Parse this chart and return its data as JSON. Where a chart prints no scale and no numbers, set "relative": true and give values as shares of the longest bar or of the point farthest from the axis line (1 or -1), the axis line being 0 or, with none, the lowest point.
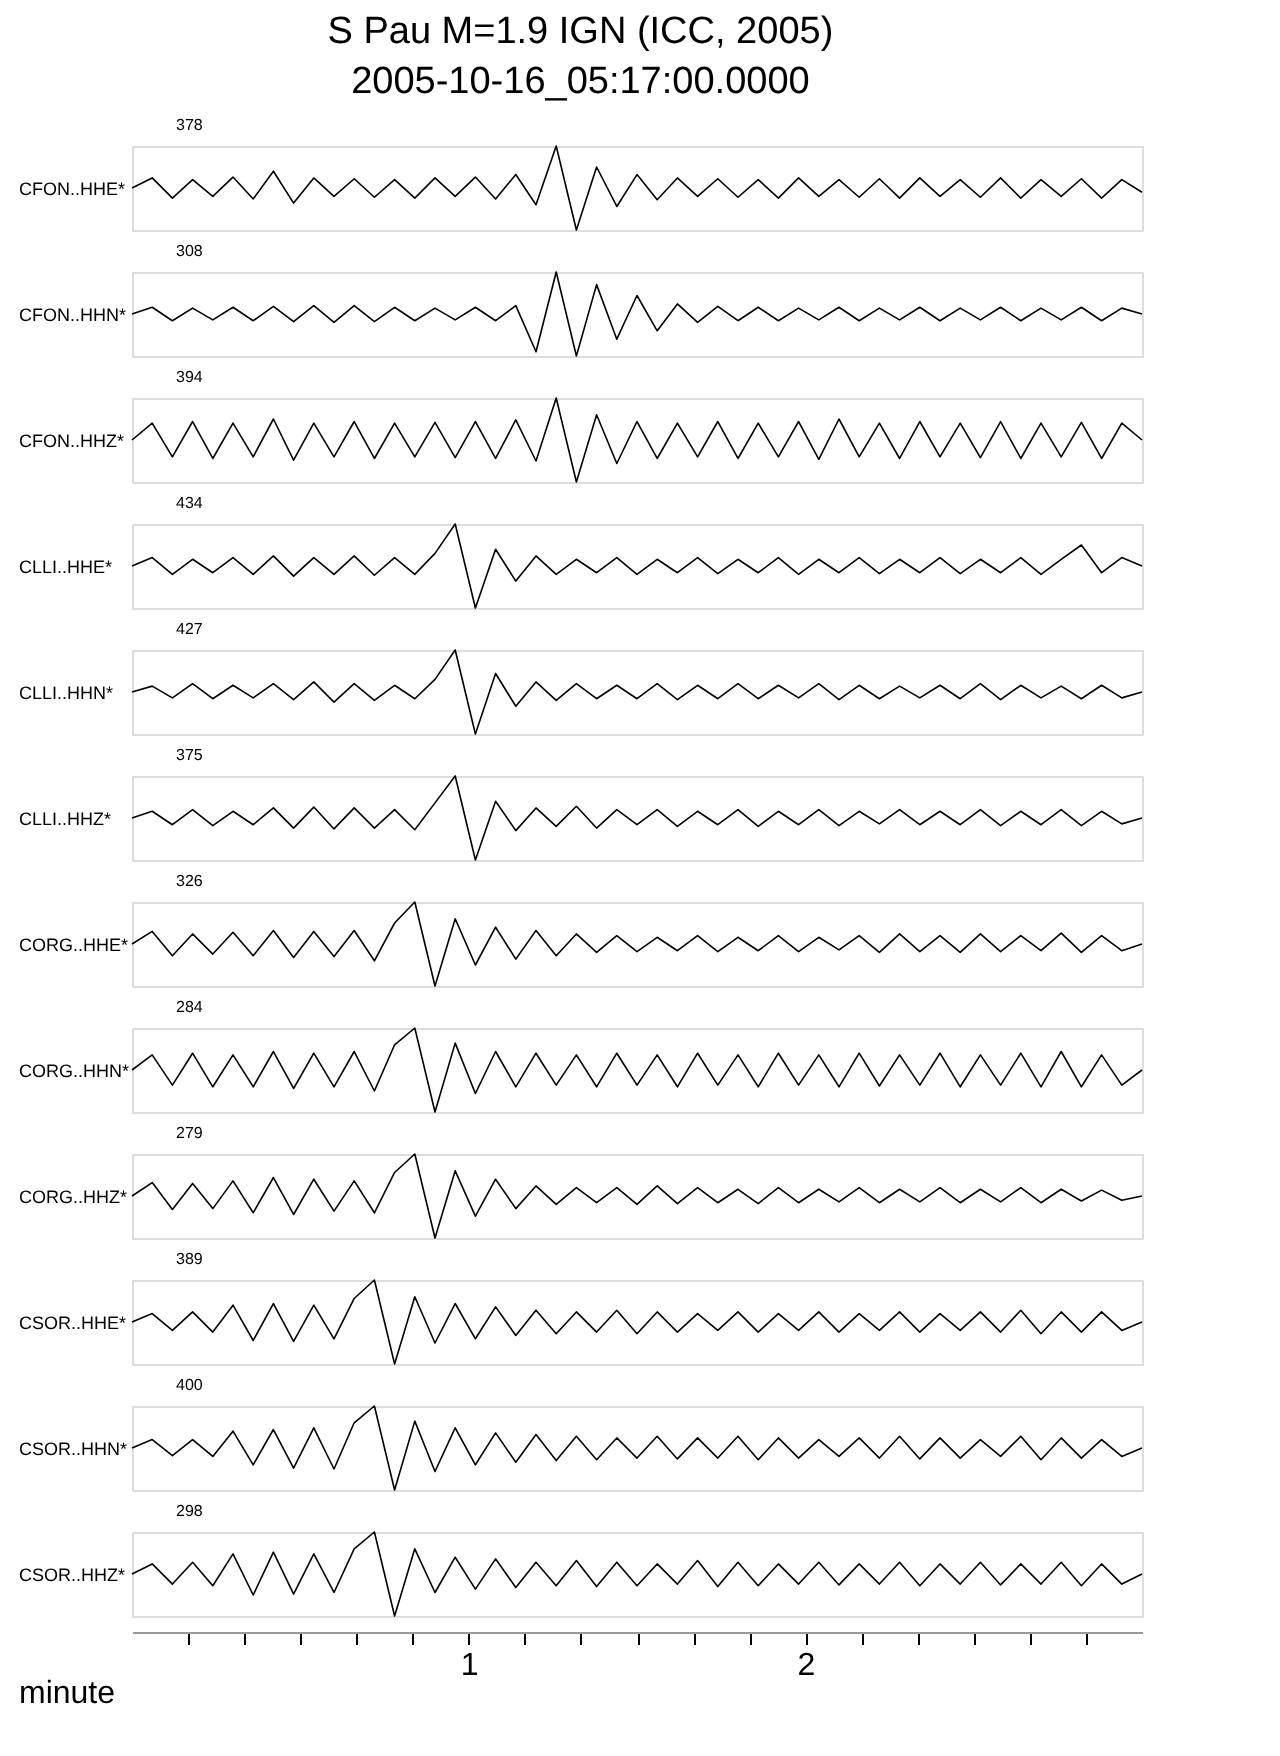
{
  "chart_data": [
    {
      "type": "line",
      "title": "S Pau M=1.9 IGN (ICC, 2005)",
      "subtitle": "2005-10-16_05:17:00.0000",
      "ylabel": "CFON..HHE*",
      "annotations": [
        "378"
      ],
      "relative": true,
      "tick_labels": false,
      "categories": [
        null,
        null,
        null,
        null,
        null,
        null,
        null,
        null,
        null,
        null,
        null,
        null,
        null,
        null,
        null,
        null,
        null,
        null,
        null,
        null,
        null,
        null,
        null,
        null,
        null,
        null,
        null,
        null,
        null,
        null,
        null,
        null,
        null,
        null,
        null,
        null,
        null,
        null,
        null,
        null,
        null,
        null,
        null,
        null,
        null,
        null,
        null,
        null,
        null,
        null,
        null
      ],
      "series": [
        {
          "color": "#000000",
          "values": [
            0.5,
            0.62,
            0.38,
            0.6,
            0.4,
            0.63,
            0.37,
            0.7,
            0.32,
            0.62,
            0.4,
            0.61,
            0.39,
            0.6,
            0.38,
            0.62,
            0.4,
            0.63,
            0.37,
            0.66,
            0.3,
            1,
            0,
            0.75,
            0.28,
            0.66,
            0.36,
            0.62,
            0.4,
            0.61,
            0.39,
            0.6,
            0.38,
            0.62,
            0.4,
            0.6,
            0.39,
            0.61,
            0.38,
            0.62,
            0.4,
            0.6,
            0.39,
            0.62,
            0.38,
            0.6,
            0.4,
            0.61,
            0.38,
            0.6,
            0.45
          ]
        }
      ]
    },
    {
      "type": "line",
      "ylabel": "CFON..HHN*",
      "annotations": [
        "308"
      ],
      "relative": true,
      "tick_labels": false,
      "categories": [
        null,
        null,
        null,
        null,
        null,
        null,
        null,
        null,
        null,
        null,
        null,
        null,
        null,
        null,
        null,
        null,
        null,
        null,
        null,
        null,
        null,
        null,
        null,
        null,
        null,
        null,
        null,
        null,
        null,
        null,
        null,
        null,
        null,
        null,
        null,
        null,
        null,
        null,
        null,
        null,
        null,
        null,
        null,
        null,
        null,
        null,
        null,
        null,
        null,
        null,
        null
      ],
      "series": [
        {
          "color": "#000000",
          "values": [
            0.5,
            0.58,
            0.42,
            0.57,
            0.43,
            0.58,
            0.42,
            0.59,
            0.41,
            0.6,
            0.4,
            0.6,
            0.41,
            0.58,
            0.42,
            0.57,
            0.43,
            0.58,
            0.42,
            0.6,
            0.05,
            1,
            0,
            0.85,
            0.2,
            0.72,
            0.3,
            0.62,
            0.4,
            0.59,
            0.42,
            0.58,
            0.42,
            0.57,
            0.43,
            0.58,
            0.42,
            0.57,
            0.43,
            0.58,
            0.42,
            0.57,
            0.43,
            0.58,
            0.42,
            0.57,
            0.43,
            0.58,
            0.42,
            0.57,
            0.5
          ]
        }
      ]
    },
    {
      "type": "line",
      "ylabel": "CFON..HHZ*",
      "annotations": [
        "394"
      ],
      "relative": true,
      "tick_labels": false,
      "categories": [
        null,
        null,
        null,
        null,
        null,
        null,
        null,
        null,
        null,
        null,
        null,
        null,
        null,
        null,
        null,
        null,
        null,
        null,
        null,
        null,
        null,
        null,
        null,
        null,
        null,
        null,
        null,
        null,
        null,
        null,
        null,
        null,
        null,
        null,
        null,
        null,
        null,
        null,
        null,
        null,
        null,
        null,
        null,
        null,
        null,
        null,
        null,
        null,
        null,
        null,
        null
      ],
      "series": [
        {
          "color": "#000000",
          "values": [
            0.5,
            0.7,
            0.3,
            0.72,
            0.28,
            0.7,
            0.3,
            0.75,
            0.26,
            0.7,
            0.3,
            0.72,
            0.28,
            0.7,
            0.3,
            0.71,
            0.29,
            0.72,
            0.28,
            0.74,
            0.25,
            1,
            0,
            0.8,
            0.22,
            0.72,
            0.28,
            0.7,
            0.3,
            0.72,
            0.28,
            0.7,
            0.3,
            0.72,
            0.27,
            0.75,
            0.3,
            0.7,
            0.28,
            0.72,
            0.3,
            0.7,
            0.29,
            0.72,
            0.28,
            0.7,
            0.3,
            0.71,
            0.28,
            0.7,
            0.5
          ]
        }
      ]
    },
    {
      "type": "line",
      "ylabel": "CLLI..HHE*",
      "annotations": [
        "434"
      ],
      "relative": true,
      "tick_labels": false,
      "categories": [
        null,
        null,
        null,
        null,
        null,
        null,
        null,
        null,
        null,
        null,
        null,
        null,
        null,
        null,
        null,
        null,
        null,
        null,
        null,
        null,
        null,
        null,
        null,
        null,
        null,
        null,
        null,
        null,
        null,
        null,
        null,
        null,
        null,
        null,
        null,
        null,
        null,
        null,
        null,
        null,
        null,
        null,
        null,
        null,
        null,
        null,
        null,
        null,
        null,
        null,
        null
      ],
      "series": [
        {
          "color": "#000000",
          "values": [
            0.5,
            0.6,
            0.4,
            0.58,
            0.42,
            0.6,
            0.4,
            0.62,
            0.38,
            0.6,
            0.4,
            0.62,
            0.39,
            0.6,
            0.4,
            0.65,
            1,
            0,
            0.7,
            0.32,
            0.62,
            0.4,
            0.58,
            0.42,
            0.6,
            0.4,
            0.58,
            0.42,
            0.6,
            0.41,
            0.58,
            0.42,
            0.6,
            0.4,
            0.58,
            0.42,
            0.6,
            0.41,
            0.58,
            0.42,
            0.6,
            0.41,
            0.58,
            0.42,
            0.6,
            0.4,
            0.58,
            0.75,
            0.42,
            0.6,
            0.5
          ]
        }
      ]
    },
    {
      "type": "line",
      "ylabel": "CLLI..HHN*",
      "annotations": [
        "427"
      ],
      "relative": true,
      "tick_labels": false,
      "categories": [
        null,
        null,
        null,
        null,
        null,
        null,
        null,
        null,
        null,
        null,
        null,
        null,
        null,
        null,
        null,
        null,
        null,
        null,
        null,
        null,
        null,
        null,
        null,
        null,
        null,
        null,
        null,
        null,
        null,
        null,
        null,
        null,
        null,
        null,
        null,
        null,
        null,
        null,
        null,
        null,
        null,
        null,
        null,
        null,
        null,
        null,
        null,
        null,
        null,
        null,
        null
      ],
      "series": [
        {
          "color": "#000000",
          "values": [
            0.5,
            0.57,
            0.43,
            0.6,
            0.42,
            0.58,
            0.43,
            0.6,
            0.41,
            0.62,
            0.38,
            0.6,
            0.4,
            0.58,
            0.42,
            0.65,
            1,
            0,
            0.72,
            0.33,
            0.62,
            0.4,
            0.6,
            0.42,
            0.58,
            0.42,
            0.6,
            0.41,
            0.58,
            0.42,
            0.6,
            0.42,
            0.58,
            0.43,
            0.6,
            0.41,
            0.58,
            0.42,
            0.57,
            0.43,
            0.58,
            0.42,
            0.6,
            0.41,
            0.58,
            0.43,
            0.57,
            0.42,
            0.58,
            0.43,
            0.5
          ]
        }
      ]
    },
    {
      "type": "line",
      "ylabel": "CLLI..HHZ*",
      "annotations": [
        "375"
      ],
      "relative": true,
      "tick_labels": false,
      "categories": [
        null,
        null,
        null,
        null,
        null,
        null,
        null,
        null,
        null,
        null,
        null,
        null,
        null,
        null,
        null,
        null,
        null,
        null,
        null,
        null,
        null,
        null,
        null,
        null,
        null,
        null,
        null,
        null,
        null,
        null,
        null,
        null,
        null,
        null,
        null,
        null,
        null,
        null,
        null,
        null,
        null,
        null,
        null,
        null,
        null,
        null,
        null,
        null,
        null,
        null,
        null
      ],
      "series": [
        {
          "color": "#000000",
          "values": [
            0.5,
            0.58,
            0.42,
            0.6,
            0.41,
            0.58,
            0.42,
            0.62,
            0.38,
            0.63,
            0.37,
            0.62,
            0.38,
            0.6,
            0.36,
            0.68,
            1,
            0,
            0.7,
            0.35,
            0.62,
            0.4,
            0.64,
            0.38,
            0.6,
            0.42,
            0.6,
            0.4,
            0.58,
            0.42,
            0.6,
            0.4,
            0.58,
            0.42,
            0.6,
            0.41,
            0.58,
            0.43,
            0.6,
            0.42,
            0.58,
            0.42,
            0.6,
            0.41,
            0.58,
            0.42,
            0.6,
            0.41,
            0.58,
            0.43,
            0.5
          ]
        }
      ]
    },
    {
      "type": "line",
      "ylabel": "CORG..HHE*",
      "annotations": [
        "326"
      ],
      "relative": true,
      "tick_labels": false,
      "categories": [
        null,
        null,
        null,
        null,
        null,
        null,
        null,
        null,
        null,
        null,
        null,
        null,
        null,
        null,
        null,
        null,
        null,
        null,
        null,
        null,
        null,
        null,
        null,
        null,
        null,
        null,
        null,
        null,
        null,
        null,
        null,
        null,
        null,
        null,
        null,
        null,
        null,
        null,
        null,
        null,
        null,
        null,
        null,
        null,
        null,
        null,
        null,
        null,
        null,
        null,
        null
      ],
      "series": [
        {
          "color": "#000000",
          "values": [
            0.5,
            0.65,
            0.36,
            0.62,
            0.38,
            0.64,
            0.36,
            0.66,
            0.34,
            0.65,
            0.35,
            0.66,
            0.3,
            0.75,
            1,
            0,
            0.8,
            0.25,
            0.7,
            0.32,
            0.66,
            0.36,
            0.62,
            0.4,
            0.6,
            0.41,
            0.58,
            0.42,
            0.6,
            0.41,
            0.58,
            0.42,
            0.6,
            0.41,
            0.58,
            0.43,
            0.6,
            0.4,
            0.62,
            0.41,
            0.6,
            0.4,
            0.62,
            0.41,
            0.6,
            0.42,
            0.63,
            0.4,
            0.6,
            0.42,
            0.5
          ]
        }
      ]
    },
    {
      "type": "line",
      "ylabel": "CORG..HHN*",
      "annotations": [
        "284"
      ],
      "relative": true,
      "tick_labels": false,
      "categories": [
        null,
        null,
        null,
        null,
        null,
        null,
        null,
        null,
        null,
        null,
        null,
        null,
        null,
        null,
        null,
        null,
        null,
        null,
        null,
        null,
        null,
        null,
        null,
        null,
        null,
        null,
        null,
        null,
        null,
        null,
        null,
        null,
        null,
        null,
        null,
        null,
        null,
        null,
        null,
        null,
        null,
        null,
        null,
        null,
        null,
        null,
        null,
        null,
        null,
        null,
        null
      ],
      "series": [
        {
          "color": "#000000",
          "values": [
            0.5,
            0.68,
            0.32,
            0.7,
            0.3,
            0.68,
            0.3,
            0.72,
            0.28,
            0.7,
            0.3,
            0.72,
            0.25,
            0.8,
            1,
            0,
            0.82,
            0.22,
            0.72,
            0.3,
            0.7,
            0.32,
            0.68,
            0.3,
            0.7,
            0.32,
            0.68,
            0.3,
            0.7,
            0.32,
            0.68,
            0.3,
            0.7,
            0.32,
            0.68,
            0.3,
            0.7,
            0.31,
            0.68,
            0.32,
            0.7,
            0.3,
            0.68,
            0.32,
            0.7,
            0.3,
            0.72,
            0.3,
            0.68,
            0.32,
            0.5
          ]
        }
      ]
    },
    {
      "type": "line",
      "ylabel": "CORG..HHZ*",
      "annotations": [
        "279"
      ],
      "relative": true,
      "tick_labels": false,
      "categories": [
        null,
        null,
        null,
        null,
        null,
        null,
        null,
        null,
        null,
        null,
        null,
        null,
        null,
        null,
        null,
        null,
        null,
        null,
        null,
        null,
        null,
        null,
        null,
        null,
        null,
        null,
        null,
        null,
        null,
        null,
        null,
        null,
        null,
        null,
        null,
        null,
        null,
        null,
        null,
        null,
        null,
        null,
        null,
        null,
        null,
        null,
        null,
        null,
        null,
        null,
        null
      ],
      "series": [
        {
          "color": "#000000",
          "values": [
            0.5,
            0.66,
            0.34,
            0.65,
            0.35,
            0.68,
            0.3,
            0.72,
            0.28,
            0.7,
            0.32,
            0.68,
            0.3,
            0.78,
            1,
            0,
            0.8,
            0.26,
            0.7,
            0.35,
            0.62,
            0.4,
            0.6,
            0.42,
            0.6,
            0.4,
            0.62,
            0.41,
            0.6,
            0.42,
            0.58,
            0.41,
            0.6,
            0.42,
            0.58,
            0.43,
            0.6,
            0.42,
            0.58,
            0.43,
            0.6,
            0.42,
            0.58,
            0.43,
            0.6,
            0.42,
            0.58,
            0.44,
            0.57,
            0.45,
            0.5
          ]
        }
      ]
    },
    {
      "type": "line",
      "ylabel": "CSOR..HHE*",
      "annotations": [
        "389"
      ],
      "relative": true,
      "tick_labels": false,
      "categories": [
        null,
        null,
        null,
        null,
        null,
        null,
        null,
        null,
        null,
        null,
        null,
        null,
        null,
        null,
        null,
        null,
        null,
        null,
        null,
        null,
        null,
        null,
        null,
        null,
        null,
        null,
        null,
        null,
        null,
        null,
        null,
        null,
        null,
        null,
        null,
        null,
        null,
        null,
        null,
        null,
        null,
        null,
        null,
        null,
        null,
        null,
        null,
        null,
        null,
        null,
        null
      ],
      "series": [
        {
          "color": "#000000",
          "values": [
            0.5,
            0.6,
            0.4,
            0.62,
            0.38,
            0.7,
            0.28,
            0.72,
            0.27,
            0.7,
            0.3,
            0.78,
            1,
            0,
            0.8,
            0.25,
            0.72,
            0.3,
            0.68,
            0.34,
            0.64,
            0.36,
            0.62,
            0.38,
            0.64,
            0.36,
            0.62,
            0.38,
            0.6,
            0.4,
            0.62,
            0.38,
            0.6,
            0.4,
            0.62,
            0.38,
            0.6,
            0.4,
            0.62,
            0.38,
            0.6,
            0.4,
            0.62,
            0.38,
            0.64,
            0.36,
            0.62,
            0.38,
            0.62,
            0.4,
            0.5
          ]
        }
      ]
    },
    {
      "type": "line",
      "ylabel": "CSOR..HHN*",
      "annotations": [
        "400"
      ],
      "relative": true,
      "tick_labels": false,
      "categories": [
        null,
        null,
        null,
        null,
        null,
        null,
        null,
        null,
        null,
        null,
        null,
        null,
        null,
        null,
        null,
        null,
        null,
        null,
        null,
        null,
        null,
        null,
        null,
        null,
        null,
        null,
        null,
        null,
        null,
        null,
        null,
        null,
        null,
        null,
        null,
        null,
        null,
        null,
        null,
        null,
        null,
        null,
        null,
        null,
        null,
        null,
        null,
        null,
        null,
        null,
        null
      ],
      "series": [
        {
          "color": "#000000",
          "values": [
            0.5,
            0.6,
            0.41,
            0.6,
            0.4,
            0.7,
            0.3,
            0.72,
            0.26,
            0.74,
            0.25,
            0.8,
            1,
            0,
            0.82,
            0.22,
            0.74,
            0.3,
            0.68,
            0.33,
            0.66,
            0.35,
            0.64,
            0.36,
            0.62,
            0.38,
            0.64,
            0.37,
            0.62,
            0.38,
            0.64,
            0.36,
            0.62,
            0.38,
            0.6,
            0.4,
            0.62,
            0.38,
            0.64,
            0.37,
            0.62,
            0.38,
            0.6,
            0.4,
            0.64,
            0.36,
            0.62,
            0.38,
            0.6,
            0.4,
            0.5
          ]
        }
      ]
    },
    {
      "type": "line",
      "ylabel": "CSOR..HHZ*",
      "xlabel": "minute",
      "annotations": [
        "298"
      ],
      "relative": true,
      "xlim": [
        0,
        3
      ],
      "tick_labels": "x",
      "xticks": [
        {
          "value": 0.1667,
          "label": null
        },
        {
          "value": 0.3333,
          "label": null
        },
        {
          "value": 0.5,
          "label": null
        },
        {
          "value": 0.6667,
          "label": null
        },
        {
          "value": 0.8333,
          "label": null
        },
        1,
        {
          "value": 1.1667,
          "label": null
        },
        {
          "value": 1.3333,
          "label": null
        },
        {
          "value": 1.5,
          "label": null
        },
        {
          "value": 1.6667,
          "label": null
        },
        {
          "value": 1.8333,
          "label": null
        },
        2,
        {
          "value": 2.1667,
          "label": null
        },
        {
          "value": 2.3333,
          "label": null
        },
        {
          "value": 2.5,
          "label": null
        },
        {
          "value": 2.6667,
          "label": null
        },
        {
          "value": 2.8333,
          "label": null
        }
      ],
      "x": [
        0,
        0.06,
        0.12,
        0.18,
        0.24,
        0.3,
        0.36,
        0.42,
        0.48,
        0.54,
        0.6,
        0.66,
        0.72,
        0.78,
        0.84,
        0.9,
        0.96,
        1.02,
        1.08,
        1.14,
        1.2,
        1.26,
        1.32,
        1.38,
        1.44,
        1.5,
        1.56,
        1.62,
        1.68,
        1.74,
        1.8,
        1.86,
        1.92,
        1.98,
        2.04,
        2.1,
        2.16,
        2.22,
        2.28,
        2.34,
        2.4,
        2.46,
        2.52,
        2.58,
        2.64,
        2.7,
        2.76,
        2.82,
        2.88,
        2.94,
        3.0
      ],
      "series": [
        {
          "color": "#000000",
          "values": [
            0.5,
            0.62,
            0.38,
            0.64,
            0.36,
            0.74,
            0.25,
            0.76,
            0.26,
            0.74,
            0.28,
            0.8,
            1,
            0,
            0.8,
            0.28,
            0.7,
            0.32,
            0.68,
            0.34,
            0.64,
            0.36,
            0.66,
            0.35,
            0.64,
            0.36,
            0.62,
            0.38,
            0.66,
            0.35,
            0.64,
            0.36,
            0.62,
            0.38,
            0.64,
            0.37,
            0.62,
            0.38,
            0.64,
            0.36,
            0.62,
            0.38,
            0.64,
            0.37,
            0.62,
            0.38,
            0.64,
            0.36,
            0.62,
            0.38,
            0.5
          ]
        }
      ]
    }
  ]
}
